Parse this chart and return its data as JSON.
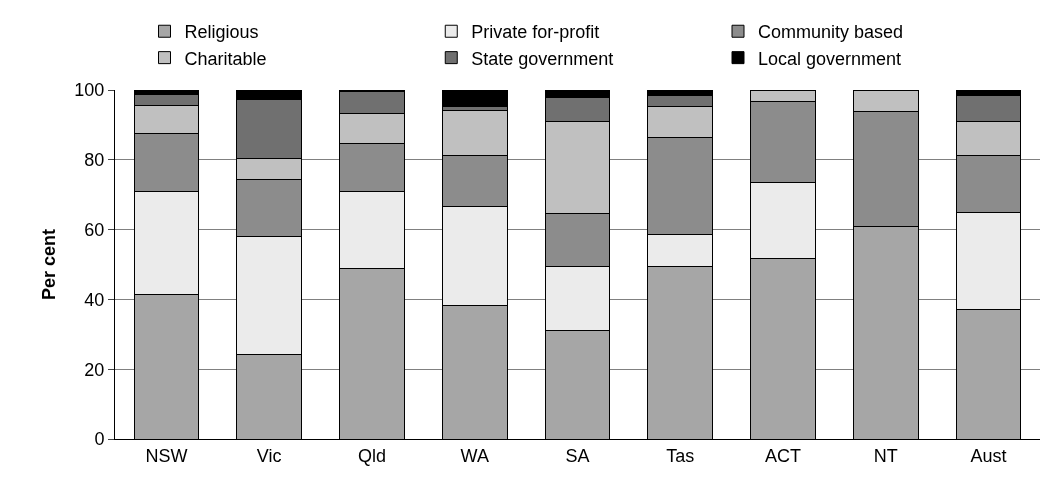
{
  "chart_data": {
    "type": "bar",
    "stacked": true,
    "ylabel": "Per cent",
    "categories": [
      "NSW",
      "Vic",
      "Qld",
      "WA",
      "SA",
      "Tas",
      "ACT",
      "NT",
      "Aust"
    ],
    "series": [
      {
        "name": "Religious",
        "color": "#a6a6a6",
        "values": [
          41.4,
          24.1,
          48.8,
          38.3,
          31.0,
          49.4,
          51.8,
          60.9,
          37.2
        ]
      },
      {
        "name": "Private for-profit",
        "color": "#ebebeb",
        "values": [
          29.5,
          33.9,
          22.1,
          28.3,
          18.4,
          9.2,
          21.8,
          0,
          27.7
        ]
      },
      {
        "name": "Community based",
        "color": "#8c8c8c",
        "values": [
          16.6,
          16.3,
          13.7,
          14.6,
          15.1,
          27.8,
          23.0,
          32.9,
          16.3
        ]
      },
      {
        "name": "Charitable",
        "color": "#c0c0c0",
        "values": [
          8.1,
          6.0,
          8.7,
          13.0,
          26.4,
          9.0,
          3.4,
          6.2,
          9.7
        ]
      },
      {
        "name": "State government",
        "color": "#707070",
        "values": [
          3.2,
          17.0,
          6.2,
          1.0,
          7.0,
          3.0,
          0,
          0,
          7.5
        ]
      },
      {
        "name": "Local government",
        "color": "#000000",
        "values": [
          1.2,
          2.7,
          0.5,
          4.8,
          2.1,
          1.6,
          0,
          0,
          1.6
        ]
      }
    ],
    "ylim": [
      0,
      100
    ],
    "yticks": [
      0,
      20,
      40,
      60,
      80,
      100
    ],
    "grid": "y",
    "legend": "top"
  }
}
